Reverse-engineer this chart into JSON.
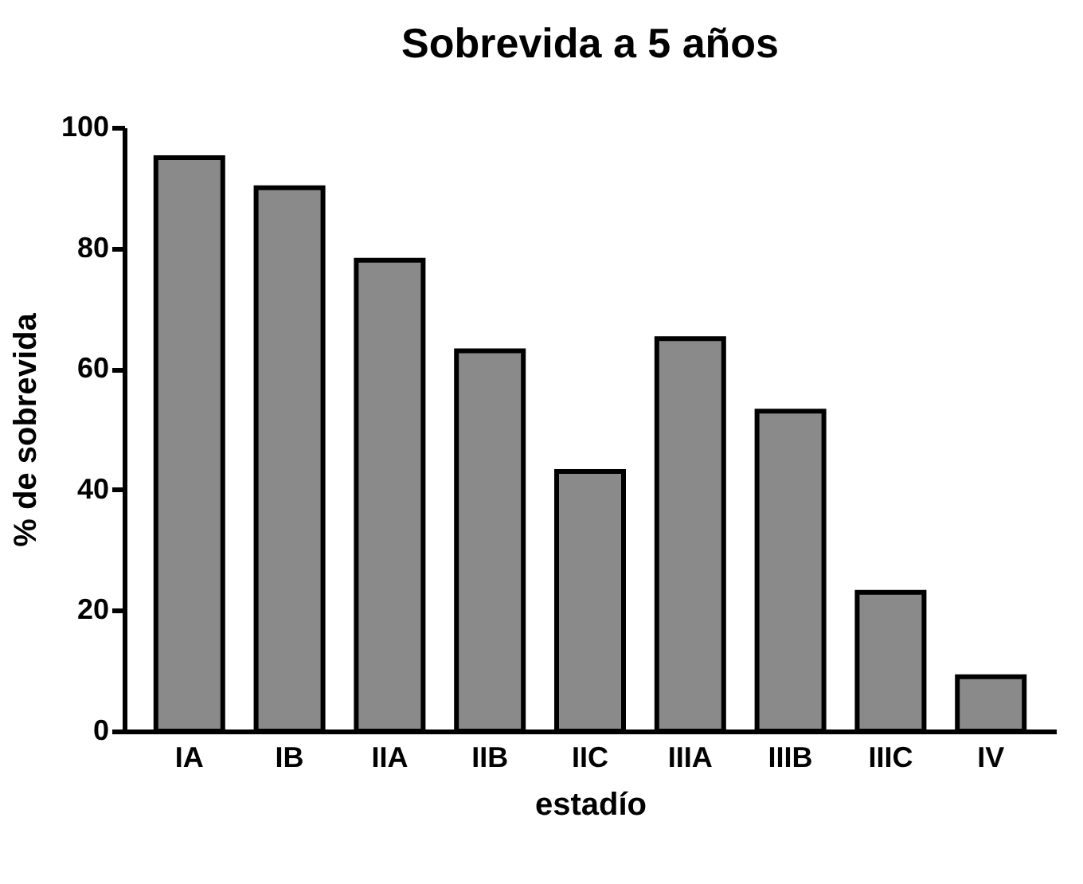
{
  "chart_data": {
    "type": "bar",
    "title": "Sobrevida a 5 años",
    "xlabel": "estadío",
    "ylabel": "% de sobrevida",
    "categories": [
      "IA",
      "IB",
      "IIA",
      "IIB",
      "IIC",
      "IIIA",
      "IIIB",
      "IIIC",
      "IV"
    ],
    "values": [
      95,
      90,
      78,
      63,
      43,
      65,
      53,
      23,
      9
    ],
    "color": "#8a8a8a",
    "ylim": [
      0,
      100
    ],
    "yticks": [
      0,
      20,
      40,
      60,
      80,
      100
    ],
    "grid": false
  }
}
